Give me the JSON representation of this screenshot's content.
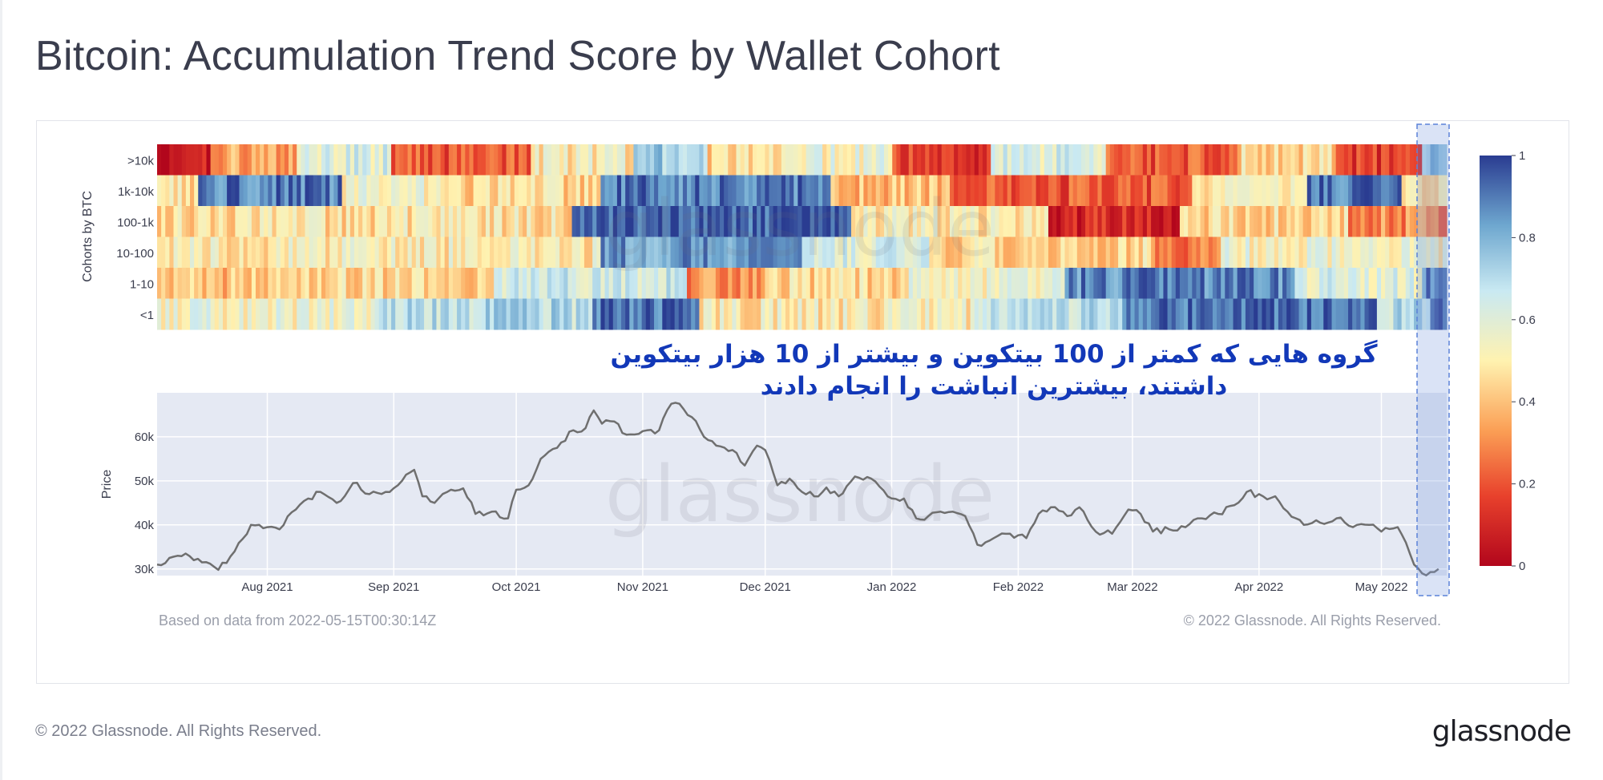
{
  "title": "Bitcoin: Accumulation Trend Score by Wallet Cohort",
  "watermark": "glassnode",
  "footer": {
    "copyright": "© 2022 Glassnode. All Rights Reserved.",
    "logo_text": "glassnode"
  },
  "annotation": {
    "line1": "گروه هایی که کمتر از 100 بیتکوین و بیشتر از 10 هزار بیتکوین",
    "line2": "داشتند، بیشترین انباشت را انجام دادند",
    "color": "#1238b8"
  },
  "chart_data": [
    {
      "type": "heatmap",
      "ylabel": "Cohorts by BTC",
      "rows": [
        ">10k",
        "1k-10k",
        "100-1k",
        "10-100",
        "1-10",
        "<1"
      ],
      "x_start": "2021-07-05",
      "x_end": "2022-05-15",
      "colorscale": [
        "#b2061c",
        "#e8412c",
        "#fb9f55",
        "#fff2b0",
        "#c9e9f2",
        "#6ea7cf",
        "#2a3c91"
      ],
      "colorbar_ticks": [
        0,
        0.2,
        0.4,
        0.6,
        0.8,
        1
      ],
      "zlim": [
        0,
        1
      ],
      "segments": [
        [
          {
            "start": "2021-07-05",
            "end": "2021-07-18",
            "value": 0.05
          },
          {
            "start": "2021-07-18",
            "end": "2021-08-08",
            "value": 0.35
          },
          {
            "start": "2021-08-08",
            "end": "2021-08-31",
            "value": 0.6
          },
          {
            "start": "2021-08-31",
            "end": "2021-10-04",
            "value": 0.2
          },
          {
            "start": "2021-10-04",
            "end": "2021-10-29",
            "value": 0.5
          },
          {
            "start": "2021-10-29",
            "end": "2021-11-16",
            "value": 0.75
          },
          {
            "start": "2021-11-16",
            "end": "2021-12-09",
            "value": 0.45
          },
          {
            "start": "2021-12-09",
            "end": "2021-12-31",
            "value": 0.55
          },
          {
            "start": "2021-12-31",
            "end": "2022-01-24",
            "value": 0.15
          },
          {
            "start": "2022-01-24",
            "end": "2022-02-21",
            "value": 0.6
          },
          {
            "start": "2022-02-21",
            "end": "2022-03-25",
            "value": 0.2
          },
          {
            "start": "2022-03-25",
            "end": "2022-04-18",
            "value": 0.45
          },
          {
            "start": "2022-04-18",
            "end": "2022-05-09",
            "value": 0.15
          },
          {
            "start": "2022-05-09",
            "end": "2022-05-15",
            "value": 0.8
          }
        ],
        [
          {
            "start": "2021-07-05",
            "end": "2021-07-15",
            "value": 0.45
          },
          {
            "start": "2021-07-15",
            "end": "2021-08-19",
            "value": 0.9
          },
          {
            "start": "2021-08-19",
            "end": "2021-09-16",
            "value": 0.55
          },
          {
            "start": "2021-09-16",
            "end": "2021-10-21",
            "value": 0.45
          },
          {
            "start": "2021-10-21",
            "end": "2021-12-16",
            "value": 0.9
          },
          {
            "start": "2021-12-16",
            "end": "2022-01-14",
            "value": 0.4
          },
          {
            "start": "2022-01-14",
            "end": "2022-03-14",
            "value": 0.2
          },
          {
            "start": "2022-03-14",
            "end": "2022-04-11",
            "value": 0.5
          },
          {
            "start": "2022-04-11",
            "end": "2022-05-04",
            "value": 0.9
          },
          {
            "start": "2022-05-04",
            "end": "2022-05-15",
            "value": 0.5
          }
        ],
        [
          {
            "start": "2021-07-05",
            "end": "2021-10-14",
            "value": 0.47
          },
          {
            "start": "2021-10-14",
            "end": "2021-12-21",
            "value": 0.95
          },
          {
            "start": "2021-12-21",
            "end": "2022-02-07",
            "value": 0.5
          },
          {
            "start": "2022-02-07",
            "end": "2022-03-11",
            "value": 0.1
          },
          {
            "start": "2022-03-11",
            "end": "2022-04-21",
            "value": 0.45
          },
          {
            "start": "2022-04-21",
            "end": "2022-05-15",
            "value": 0.3
          }
        ],
        [
          {
            "start": "2021-07-05",
            "end": "2021-10-21",
            "value": 0.5
          },
          {
            "start": "2021-10-21",
            "end": "2021-12-09",
            "value": 0.85
          },
          {
            "start": "2021-12-09",
            "end": "2022-01-09",
            "value": 0.6
          },
          {
            "start": "2022-01-09",
            "end": "2022-03-04",
            "value": 0.45
          },
          {
            "start": "2022-03-04",
            "end": "2022-03-21",
            "value": 0.25
          },
          {
            "start": "2022-03-21",
            "end": "2022-05-15",
            "value": 0.55
          }
        ],
        [
          {
            "start": "2021-07-05",
            "end": "2021-08-04",
            "value": 0.4
          },
          {
            "start": "2021-08-04",
            "end": "2021-09-25",
            "value": 0.45
          },
          {
            "start": "2021-09-25",
            "end": "2021-11-11",
            "value": 0.65
          },
          {
            "start": "2021-11-11",
            "end": "2021-11-30",
            "value": 0.3
          },
          {
            "start": "2021-11-30",
            "end": "2022-01-04",
            "value": 0.45
          },
          {
            "start": "2022-01-04",
            "end": "2022-02-11",
            "value": 0.55
          },
          {
            "start": "2022-02-11",
            "end": "2022-04-08",
            "value": 0.88
          },
          {
            "start": "2022-04-08",
            "end": "2022-05-09",
            "value": 0.6
          },
          {
            "start": "2022-05-09",
            "end": "2022-05-15",
            "value": 0.9
          }
        ],
        [
          {
            "start": "2021-07-05",
            "end": "2021-08-28",
            "value": 0.55
          },
          {
            "start": "2021-08-28",
            "end": "2021-10-19",
            "value": 0.7
          },
          {
            "start": "2021-10-19",
            "end": "2021-11-14",
            "value": 0.92
          },
          {
            "start": "2021-11-14",
            "end": "2022-01-19",
            "value": 0.5
          },
          {
            "start": "2022-01-19",
            "end": "2022-02-25",
            "value": 0.68
          },
          {
            "start": "2022-02-25",
            "end": "2022-04-28",
            "value": 0.93
          },
          {
            "start": "2022-04-28",
            "end": "2022-05-11",
            "value": 0.7
          },
          {
            "start": "2022-05-11",
            "end": "2022-05-15",
            "value": 0.98
          }
        ]
      ]
    },
    {
      "type": "line",
      "ylabel": "Price",
      "ylim": [
        28500,
        70000
      ],
      "yticks": [
        30000,
        40000,
        50000,
        60000
      ],
      "ytick_labels": [
        "30k",
        "40k",
        "50k",
        "60k"
      ],
      "xlim": [
        "2021-07-05",
        "2022-05-17"
      ],
      "xticks": [
        "2021-08-01",
        "2021-09-01",
        "2021-10-01",
        "2021-11-01",
        "2021-12-01",
        "2022-01-01",
        "2022-02-01",
        "2022-03-01",
        "2022-04-01",
        "2022-05-01"
      ],
      "xtick_labels": [
        "Aug 2021",
        "Sep 2021",
        "Oct 2021",
        "Nov 2021",
        "Dec 2021",
        "Jan 2022",
        "Feb 2022",
        "Mar 2022",
        "Apr 2022",
        "May 2022"
      ],
      "series": [
        {
          "color": "#6f6f6f",
          "points": [
            [
              "2021-07-05",
              31000
            ],
            [
              "2021-07-08",
              32500
            ],
            [
              "2021-07-12",
              33500
            ],
            [
              "2021-07-16",
              31500
            ],
            [
              "2021-07-20",
              29800
            ],
            [
              "2021-07-24",
              34000
            ],
            [
              "2021-07-28",
              40000
            ],
            [
              "2021-08-01",
              39500
            ],
            [
              "2021-08-04",
              39000
            ],
            [
              "2021-08-08",
              43500
            ],
            [
              "2021-08-11",
              46000
            ],
            [
              "2021-08-14",
              47500
            ],
            [
              "2021-08-18",
              45000
            ],
            [
              "2021-08-22",
              49500
            ],
            [
              "2021-08-26",
              47000
            ],
            [
              "2021-08-30",
              47500
            ],
            [
              "2021-09-03",
              50000
            ],
            [
              "2021-09-06",
              52500
            ],
            [
              "2021-09-08",
              46500
            ],
            [
              "2021-09-11",
              45000
            ],
            [
              "2021-09-15",
              48000
            ],
            [
              "2021-09-18",
              48300
            ],
            [
              "2021-09-21",
              42500
            ],
            [
              "2021-09-25",
              43000
            ],
            [
              "2021-09-29",
              41500
            ],
            [
              "2021-10-01",
              48000
            ],
            [
              "2021-10-04",
              49000
            ],
            [
              "2021-10-07",
              55000
            ],
            [
              "2021-10-11",
              57500
            ],
            [
              "2021-10-15",
              61500
            ],
            [
              "2021-10-18",
              62000
            ],
            [
              "2021-10-20",
              66000
            ],
            [
              "2021-10-22",
              63000
            ],
            [
              "2021-10-25",
              63500
            ],
            [
              "2021-10-28",
              60500
            ],
            [
              "2021-11-01",
              61300
            ],
            [
              "2021-11-05",
              61500
            ],
            [
              "2021-11-08",
              67500
            ],
            [
              "2021-11-10",
              67500
            ],
            [
              "2021-11-13",
              64500
            ],
            [
              "2021-11-16",
              60000
            ],
            [
              "2021-11-19",
              58000
            ],
            [
              "2021-11-23",
              57000
            ],
            [
              "2021-11-26",
              53500
            ],
            [
              "2021-11-29",
              58000
            ],
            [
              "2021-12-01",
              57000
            ],
            [
              "2021-12-04",
              49000
            ],
            [
              "2021-12-07",
              50500
            ],
            [
              "2021-12-10",
              47500
            ],
            [
              "2021-12-13",
              46500
            ],
            [
              "2021-12-16",
              48500
            ],
            [
              "2021-12-19",
              46500
            ],
            [
              "2021-12-23",
              51000
            ],
            [
              "2021-12-27",
              50500
            ],
            [
              "2021-12-31",
              46500
            ],
            [
              "2022-01-04",
              46000
            ],
            [
              "2022-01-07",
              41500
            ],
            [
              "2022-01-10",
              42000
            ],
            [
              "2022-01-13",
              43000
            ],
            [
              "2022-01-16",
              43000
            ],
            [
              "2022-01-19",
              42000
            ],
            [
              "2022-01-22",
              35500
            ],
            [
              "2022-01-26",
              37000
            ],
            [
              "2022-01-30",
              38000
            ],
            [
              "2022-02-03",
              37000
            ],
            [
              "2022-02-06",
              42500
            ],
            [
              "2022-02-09",
              44000
            ],
            [
              "2022-02-13",
              42000
            ],
            [
              "2022-02-16",
              44000
            ],
            [
              "2022-02-20",
              38500
            ],
            [
              "2022-02-24",
              38000
            ],
            [
              "2022-02-28",
              43500
            ],
            [
              "2022-03-03",
              42500
            ],
            [
              "2022-03-06",
              38500
            ],
            [
              "2022-03-10",
              39000
            ],
            [
              "2022-03-14",
              39500
            ],
            [
              "2022-03-18",
              41500
            ],
            [
              "2022-03-22",
              42500
            ],
            [
              "2022-03-26",
              44500
            ],
            [
              "2022-03-29",
              47500
            ],
            [
              "2022-04-02",
              46500
            ],
            [
              "2022-04-05",
              46500
            ],
            [
              "2022-04-08",
              43000
            ],
            [
              "2022-04-12",
              40000
            ],
            [
              "2022-04-16",
              40500
            ],
            [
              "2022-04-20",
              41500
            ],
            [
              "2022-04-24",
              39500
            ],
            [
              "2022-04-28",
              40000
            ],
            [
              "2022-05-01",
              38500
            ],
            [
              "2022-05-05",
              39500
            ],
            [
              "2022-05-07",
              36000
            ],
            [
              "2022-05-09",
              31000
            ],
            [
              "2022-05-11",
              29000
            ],
            [
              "2022-05-13",
              29300
            ],
            [
              "2022-05-15",
              30000
            ]
          ]
        }
      ]
    }
  ],
  "chart_footer": {
    "left": "Based on data from 2022-05-15T00:30:14Z",
    "right": "© 2022 Glassnode. All Rights Reserved."
  }
}
